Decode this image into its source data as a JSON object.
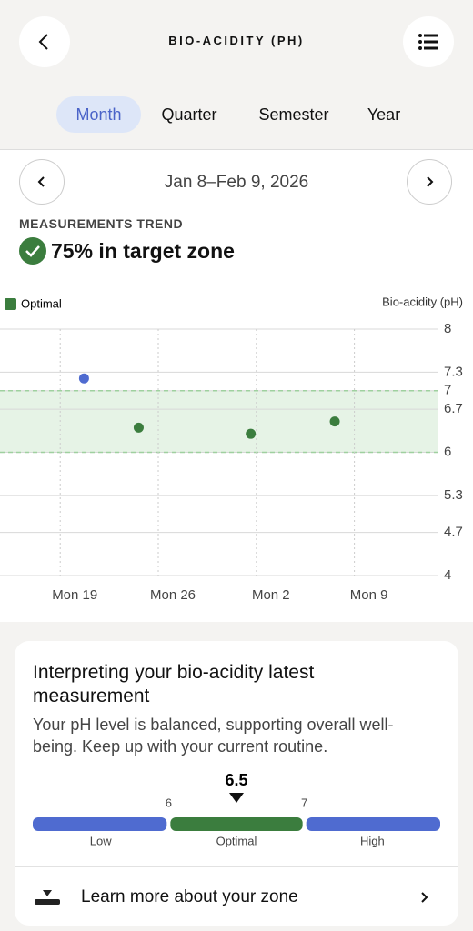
{
  "header": {
    "title": "BIO-ACIDITY (PH)"
  },
  "tabs": {
    "items": [
      "Month",
      "Quarter",
      "Semester",
      "Year"
    ],
    "selected": 0
  },
  "period": "Jan 8–Feb 9, 2026",
  "trend": {
    "label": "MEASUREMENTS TREND",
    "summary": "75% in target zone"
  },
  "chart_data": {
    "type": "scatter",
    "y_label": "Bio-acidity (pH)",
    "series": [
      {
        "name": "Optimal",
        "color": "#3b7d3e",
        "x": [
          16.6,
          24.6,
          30.6
        ],
        "values": [
          6.4,
          6.3,
          6.5
        ]
      },
      {
        "color": "#4f6bd0",
        "x": [
          12.7
        ],
        "values": [
          7.2
        ]
      }
    ],
    "target_zone": [
      6,
      7
    ],
    "zone_color": "#e6f3e6",
    "xlim": [
      6.7,
      38
    ],
    "xticks": [
      {
        "value": 11,
        "label": "Mon 19"
      },
      {
        "value": 18,
        "label": "Mon 26"
      },
      {
        "value": 25,
        "label": "Mon 2"
      },
      {
        "value": 32,
        "label": "Mon 9"
      }
    ],
    "ylim": [
      4,
      8
    ],
    "yticks": [
      4,
      4.7,
      5.3,
      6,
      6.7,
      7,
      7.3,
      8
    ],
    "grid": true
  },
  "interpretation": {
    "title": "Interpreting your bio-acidity latest measurement",
    "body": "Your pH level is balanced, supporting overall well-being. Keep up with your current routine.",
    "gauge": {
      "value": 6.5,
      "lim": [
        5,
        8
      ],
      "ticks": [
        6,
        7
      ],
      "zones": [
        "Low",
        "Optimal",
        "High"
      ],
      "colors": [
        "#4f6bd0",
        "#3b7d3e",
        "#4f6bd0"
      ]
    }
  },
  "link": "Learn more about your zone"
}
